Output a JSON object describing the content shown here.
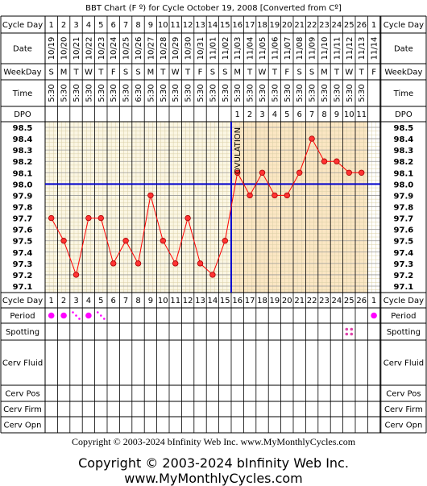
{
  "title": "BBT Chart (F º) for Cycle October 19, 2008  [Converted from Cº]",
  "copyright": "Copyright © 2003-2024 bInfinity Web Inc.",
  "site": "www.MyMonthlyCycles.com",
  "row_labels": {
    "cycle_day": "Cycle Day",
    "date": "Date",
    "weekday": "WeekDay",
    "time": "Time",
    "dpo": "DPO",
    "period": "Period",
    "spotting": "Spotting",
    "cerv_fluid": "Cerv Fluid",
    "cerv_pos": "Cerv Pos",
    "cerv_firm": "Cerv Firm",
    "cerv_opn": "Cerv Opn"
  },
  "ovulation_label": "OVULATION",
  "colors": {
    "pre_ovulation_bg": "#fbf6e3",
    "post_ovulation_bg": "#fbe6c3",
    "grid_minor": "#d9cfa6",
    "temp_line": "#ff0000",
    "point_fill": "#ff3333",
    "coverline": "#0000cc",
    "ovulation_line": "#0000cc",
    "period_dot": "#ff00ff",
    "spotting_dot": "#dd44aa"
  },
  "chart_data": {
    "type": "line",
    "title": "BBT Chart (F º) for Cycle October 19, 2008  [Converted from Cº]",
    "cycle_days": [
      "1",
      "2",
      "3",
      "4",
      "5",
      "6",
      "7",
      "8",
      "9",
      "10",
      "11",
      "12",
      "13",
      "14",
      "15",
      "16",
      "17",
      "18",
      "19",
      "20",
      "21",
      "22",
      "23",
      "24",
      "25",
      "26",
      "1"
    ],
    "dates": [
      "10/19",
      "10/20",
      "10/21",
      "10/22",
      "10/23",
      "10/24",
      "10/25",
      "10/26",
      "10/27",
      "10/28",
      "10/29",
      "10/30",
      "10/31",
      "11/01",
      "11/02",
      "11/03",
      "11/04",
      "11/05",
      "11/06",
      "11/07",
      "11/08",
      "11/09",
      "11/10",
      "11/11",
      "11/12",
      "11/13",
      "11/14"
    ],
    "weekdays": [
      "S",
      "M",
      "T",
      "W",
      "T",
      "F",
      "S",
      "S",
      "M",
      "T",
      "W",
      "T",
      "F",
      "S",
      "S",
      "M",
      "T",
      "W",
      "T",
      "F",
      "S",
      "S",
      "M",
      "T",
      "W",
      "T",
      "F"
    ],
    "times": [
      "5:30",
      "5:30",
      "5:30",
      "5:30",
      "5:30",
      "5:30",
      "5:30",
      "6:30",
      "5:30",
      "5:30",
      "5:30",
      "5:30",
      "5:30",
      "5:30",
      "5:30",
      "5:30",
      "5:30",
      "5:30",
      "5:30",
      "5:30",
      "5:30",
      "5:30",
      "5:30",
      "5:30",
      "5:30",
      "5:30",
      ""
    ],
    "dpo": [
      "",
      "",
      "",
      "",
      "",
      "",
      "",
      "",
      "",
      "",
      "",
      "",
      "",
      "",
      "",
      "1",
      "2",
      "3",
      "4",
      "5",
      "6",
      "7",
      "8",
      "9",
      "10",
      "11",
      ""
    ],
    "temperatures": [
      97.7,
      97.5,
      97.2,
      97.7,
      97.7,
      97.3,
      97.5,
      97.3,
      97.9,
      97.5,
      97.3,
      97.7,
      97.3,
      97.2,
      97.5,
      98.1,
      97.9,
      98.1,
      97.9,
      97.9,
      98.1,
      98.4,
      98.2,
      98.2,
      98.1,
      98.1,
      null
    ],
    "y_ticks": [
      "98.5",
      "98.4",
      "98.3",
      "98.2",
      "98.1",
      "98.0",
      "97.9",
      "97.8",
      "97.7",
      "97.6",
      "97.5",
      "97.4",
      "97.3",
      "97.2",
      "97.1"
    ],
    "ylim": [
      97.1,
      98.5
    ],
    "coverline": 98.0,
    "ovulation_after_day_index": 14,
    "period": [
      "dot",
      "dot",
      "dots",
      "dot",
      "dots",
      "",
      "",
      "",
      "",
      "",
      "",
      "",
      "",
      "",
      "",
      "",
      "",
      "",
      "",
      "",
      "",
      "",
      "",
      "",
      "",
      "",
      "dot"
    ],
    "spotting": [
      "",
      "",
      "",
      "",
      "",
      "",
      "",
      "",
      "",
      "",
      "",
      "",
      "",
      "",
      "",
      "",
      "",
      "",
      "",
      "",
      "",
      "",
      "",
      "",
      "dots",
      "",
      ""
    ]
  }
}
